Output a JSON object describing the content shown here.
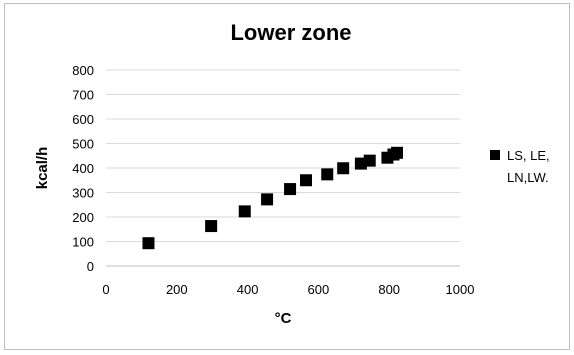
{
  "chart_data": {
    "type": "scatter",
    "title": "Lower zone",
    "xlabel": "°C",
    "ylabel": "kcal/h",
    "xlim": [
      0,
      1000
    ],
    "ylim": [
      0,
      800
    ],
    "x_ticks": [
      "0",
      "200",
      "400",
      "600",
      "800",
      "1000"
    ],
    "y_ticks": [
      "0",
      "100",
      "200",
      "300",
      "400",
      "500",
      "600",
      "700",
      "800"
    ],
    "grid": "horizontal",
    "legend_position": "right",
    "series": [
      {
        "name": "LS, LE, LN,LW.",
        "legend_lines": [
          "LS, LE,",
          "LN,LW."
        ],
        "marker": "square",
        "color": "#000000",
        "points": [
          {
            "x": 120,
            "y": 93
          },
          {
            "x": 297,
            "y": 163
          },
          {
            "x": 392,
            "y": 223
          },
          {
            "x": 455,
            "y": 272
          },
          {
            "x": 520,
            "y": 314
          },
          {
            "x": 565,
            "y": 350
          },
          {
            "x": 625,
            "y": 374
          },
          {
            "x": 670,
            "y": 399
          },
          {
            "x": 720,
            "y": 418
          },
          {
            "x": 745,
            "y": 430
          },
          {
            "x": 795,
            "y": 442
          },
          {
            "x": 812,
            "y": 455
          },
          {
            "x": 822,
            "y": 462
          }
        ]
      }
    ]
  }
}
